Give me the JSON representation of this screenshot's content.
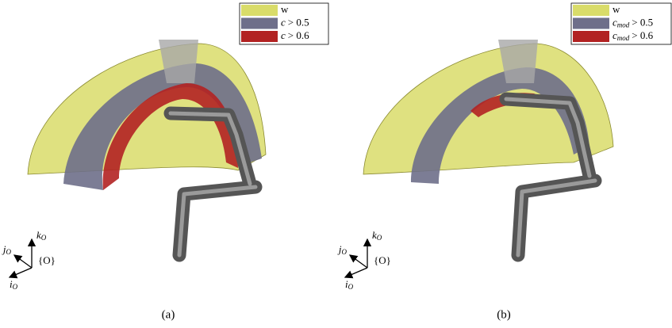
{
  "panels": [
    {
      "legend": [
        {
          "text": "w"
        },
        {
          "symbol": "c",
          "relation": "> 0.5"
        },
        {
          "symbol": "c",
          "relation": "> 0.6"
        }
      ],
      "frame": {
        "origin": "{O}",
        "axes": [
          {
            "base": "k",
            "sub": "O"
          },
          {
            "base": "j",
            "sub": "O"
          },
          {
            "base": "i",
            "sub": "O"
          }
        ]
      },
      "caption": "(a)"
    },
    {
      "legend": [
        {
          "text": "w"
        },
        {
          "symbol": "c",
          "sub": "mod",
          "relation": "> 0.5"
        },
        {
          "symbol": "c",
          "sub": "mod",
          "relation": "> 0.6"
        }
      ],
      "frame": {
        "origin": "{O}",
        "axes": [
          {
            "base": "k",
            "sub": "O"
          },
          {
            "base": "j",
            "sub": "O"
          },
          {
            "base": "i",
            "sub": "O"
          }
        ]
      },
      "caption": "(b)"
    }
  ]
}
